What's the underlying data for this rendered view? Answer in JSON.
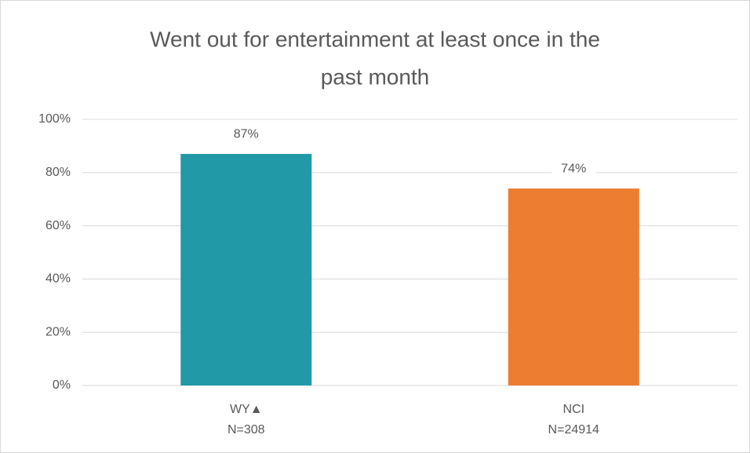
{
  "chart_data": {
    "type": "bar",
    "title": [
      "Went out for entertainment at least once in the",
      "past month"
    ],
    "categories": [
      [
        "WY▲",
        "N=308"
      ],
      [
        "NCI",
        "N=24914"
      ]
    ],
    "values": [
      87,
      74
    ],
    "value_labels": [
      "87%",
      "74%"
    ],
    "colors": [
      "#2199a6",
      "#ed7d31"
    ],
    "ylim": [
      0,
      100
    ],
    "yticks": [
      {
        "value": 0,
        "label": "0%"
      },
      {
        "value": 20,
        "label": "20%"
      },
      {
        "value": 40,
        "label": "40%"
      },
      {
        "value": 60,
        "label": "60%"
      },
      {
        "value": 80,
        "label": "80%"
      },
      {
        "value": 100,
        "label": "100%"
      }
    ],
    "grid": true
  }
}
